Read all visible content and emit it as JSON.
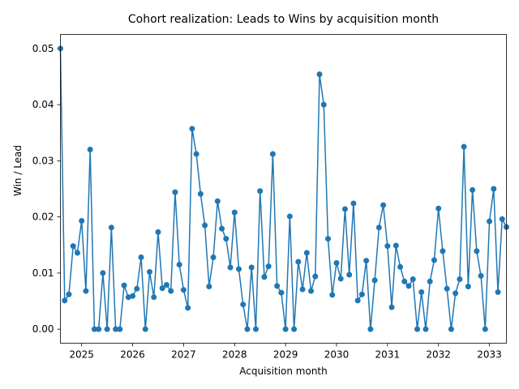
{
  "chart_data": {
    "type": "line",
    "title": "Cohort realization: Leads to Wins by acquisition month",
    "xlabel": "Acquisition month",
    "ylabel": "Win / Lead",
    "xlim": [
      "2024-08",
      "2033-05"
    ],
    "ylim": [
      -0.0025,
      0.0525
    ],
    "grid": false,
    "legend": "none",
    "x_ticks": [
      "2025",
      "2026",
      "2027",
      "2028",
      "2029",
      "2030",
      "2031",
      "2032",
      "2033"
    ],
    "y_ticks": [
      "0.00",
      "0.01",
      "0.02",
      "0.03",
      "0.04",
      "0.05"
    ],
    "series": [
      {
        "color": "#1f77b4",
        "x": [
          "2024-08",
          "2024-09",
          "2024-10",
          "2024-11",
          "2024-12",
          "2025-01",
          "2025-02",
          "2025-03",
          "2025-04",
          "2025-05",
          "2025-06",
          "2025-07",
          "2025-08",
          "2025-09",
          "2025-10",
          "2025-11",
          "2025-12",
          "2026-01",
          "2026-02",
          "2026-03",
          "2026-04",
          "2026-05",
          "2026-06",
          "2026-07",
          "2026-08",
          "2026-09",
          "2026-10",
          "2026-11",
          "2026-12",
          "2027-01",
          "2027-02",
          "2027-03",
          "2027-04",
          "2027-05",
          "2027-06",
          "2027-07",
          "2027-08",
          "2027-09",
          "2027-10",
          "2027-11",
          "2027-12",
          "2028-01",
          "2028-02",
          "2028-03",
          "2028-04",
          "2028-05",
          "2028-06",
          "2028-07",
          "2028-08",
          "2028-09",
          "2028-10",
          "2028-11",
          "2028-12",
          "2029-01",
          "2029-02",
          "2029-03",
          "2029-04",
          "2029-05",
          "2029-06",
          "2029-07",
          "2029-08",
          "2029-09",
          "2029-10",
          "2029-11",
          "2029-12",
          "2030-01",
          "2030-02",
          "2030-03",
          "2030-04",
          "2030-05",
          "2030-06",
          "2030-07",
          "2030-08",
          "2030-09",
          "2030-10",
          "2030-11",
          "2030-12",
          "2031-01",
          "2031-02",
          "2031-03",
          "2031-04",
          "2031-05",
          "2031-06",
          "2031-07",
          "2031-08",
          "2031-09",
          "2031-10",
          "2031-11",
          "2031-12",
          "2032-01",
          "2032-02",
          "2032-03",
          "2032-04",
          "2032-05",
          "2032-06",
          "2032-07",
          "2032-08",
          "2032-09",
          "2032-10",
          "2032-11",
          "2032-12",
          "2033-01",
          "2033-02",
          "2033-03",
          "2033-04",
          "2033-05"
        ],
        "values": [
          0.05,
          0.0051,
          0.0062,
          0.0148,
          0.0136,
          0.0193,
          0.0068,
          0.032,
          0.0,
          0.0,
          0.01,
          0.0,
          0.0181,
          0.0,
          0.0,
          0.0078,
          0.0057,
          0.0059,
          0.0072,
          0.0128,
          0.0,
          0.0102,
          0.0057,
          0.0173,
          0.0073,
          0.0079,
          0.0068,
          0.0244,
          0.0115,
          0.007,
          0.0038,
          0.0357,
          0.0312,
          0.0241,
          0.0185,
          0.0076,
          0.0128,
          0.0228,
          0.0179,
          0.0161,
          0.011,
          0.0208,
          0.0107,
          0.0044,
          0.0,
          0.011,
          0.0,
          0.0246,
          0.0093,
          0.0112,
          0.0312,
          0.0077,
          0.0065,
          0.0,
          0.0201,
          0.0,
          0.012,
          0.0071,
          0.0136,
          0.0068,
          0.0094,
          0.0454,
          0.04,
          0.0161,
          0.0061,
          0.0118,
          0.009,
          0.0214,
          0.0097,
          0.0224,
          0.0051,
          0.0062,
          0.0122,
          0.0,
          0.0087,
          0.0181,
          0.0221,
          0.0148,
          0.0039,
          0.0149,
          0.0111,
          0.0085,
          0.0077,
          0.0089,
          0.0,
          0.0066,
          0.0,
          0.0085,
          0.0123,
          0.0215,
          0.0139,
          0.0072,
          0.0,
          0.0064,
          0.0089,
          0.0325,
          0.0076,
          0.0248,
          0.0139,
          0.0095,
          0.0,
          0.0192,
          0.025,
          0.0066,
          0.0196,
          0.0182
        ]
      }
    ]
  }
}
